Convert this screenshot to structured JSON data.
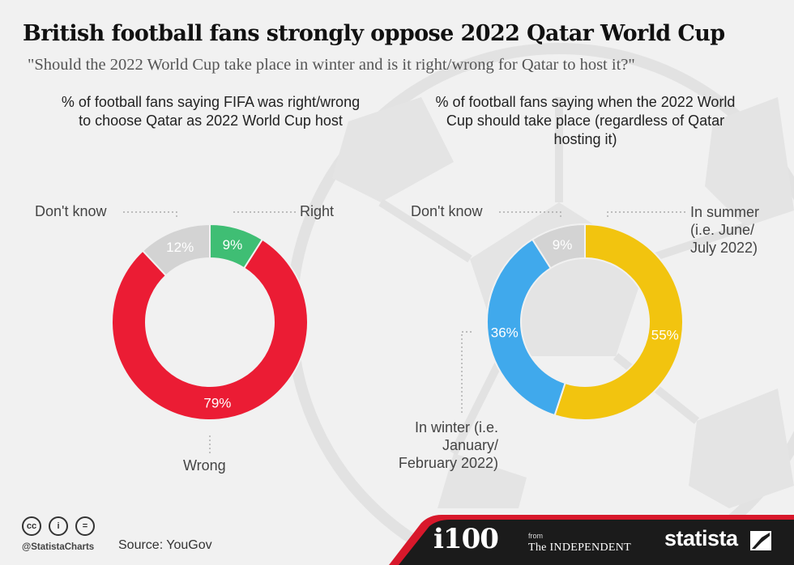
{
  "title": "British football fans strongly oppose 2022 Qatar World Cup",
  "subtitle": "\"Should the 2022 World Cup take place in winter and is it right/wrong for Qatar to host it?\"",
  "colors": {
    "right": "#3fbe74",
    "wrong": "#eb1c34",
    "dont_know": "#d3d3d3",
    "summer": "#f2c40f",
    "winter": "#40a9ec",
    "footer_red": "#d8182b",
    "footer_dark": "#1b1b1b"
  },
  "chart_data": [
    {
      "type": "pie",
      "donut": true,
      "title": "% of football fans saying FIFA was right/wrong to choose Qatar as 2022 World Cup host",
      "slices": [
        {
          "label": "Right",
          "value": 9,
          "display": "9%",
          "color": "#3fbe74"
        },
        {
          "label": "Wrong",
          "value": 79,
          "display": "79%",
          "color": "#eb1c34"
        },
        {
          "label": "Don't know",
          "value": 12,
          "display": "12%",
          "color": "#d3d3d3"
        }
      ]
    },
    {
      "type": "pie",
      "donut": true,
      "title": "% of football fans saying when the 2022 World Cup should take place (regardless of Qatar hosting it)",
      "slices": [
        {
          "label": "In summer (i.e. June/ July 2022)",
          "value": 55,
          "display": "55%",
          "color": "#f2c40f"
        },
        {
          "label": "In winter (i.e. January/ February 2022)",
          "value": 36,
          "display": "36%",
          "color": "#40a9ec"
        },
        {
          "label": "Don't know",
          "value": 9,
          "display": "9%",
          "color": "#d3d3d3"
        }
      ]
    }
  ],
  "footer": {
    "handle": "@StatistaCharts",
    "source": "Source: YouGov",
    "cc_icons": [
      "cc-icon",
      "by-icon",
      "nd-icon"
    ],
    "cc_labels": [
      "cc",
      "i",
      "="
    ],
    "i100": "i100",
    "from": "from",
    "independent": "The INDEPENDENT",
    "brand": "statista"
  }
}
